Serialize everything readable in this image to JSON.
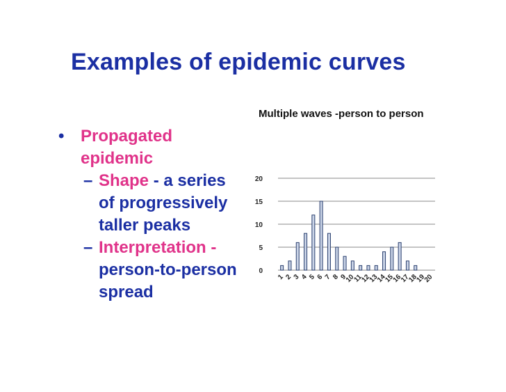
{
  "slide": {
    "title": "Examples of epidemic curves",
    "bullet_main": "Propagated epidemic",
    "sub1_key": "Shape",
    "sub1_rest": " - a series of progressively taller peaks",
    "sub2_key": "Interpretation -",
    "sub2_rest": " person-to-person spread"
  },
  "colors": {
    "title": "#1b2fa3",
    "accent": "#e0338a",
    "bar_fill": "#c9d3e6",
    "bar_stroke": "#2a3f6e"
  },
  "chart_data": {
    "type": "bar",
    "title": "Multiple waves -person to person",
    "categories": [
      "1",
      "2",
      "3",
      "4",
      "5",
      "6",
      "7",
      "8",
      "9",
      "10",
      "11",
      "12",
      "13",
      "14",
      "15",
      "16",
      "17",
      "18",
      "19",
      "20"
    ],
    "values": [
      1,
      2,
      6,
      8,
      12,
      15,
      8,
      5,
      3,
      2,
      1,
      1,
      1,
      4,
      5,
      6,
      2,
      1,
      0,
      0
    ],
    "ylim": [
      0,
      20
    ],
    "yticks": [
      0,
      5,
      10,
      15,
      20
    ],
    "grid": true,
    "legend": "none"
  }
}
